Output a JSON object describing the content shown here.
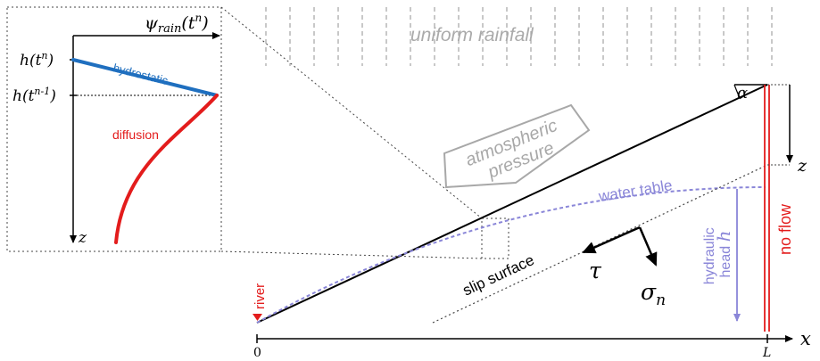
{
  "inset": {
    "psi_label_base": "ψ",
    "psi_label_sub": "rain",
    "psi_label_arg": "(t",
    "psi_label_sup": "n",
    "psi_label_close": ")",
    "h_tn_base": "h(t",
    "h_tn_sup": "n",
    "h_tn_close": ")",
    "h_tn1_base": "h(t",
    "h_tn1_sup": "n-1",
    "h_tn1_close": ")",
    "hydrostatic_label": "hydrostatic",
    "diffusion_label": "diffusion",
    "z_label": "z"
  },
  "main": {
    "rainfall_label": "uniform rainfall",
    "alpha_label": "α",
    "atmospheric_line1": "atmospheric",
    "atmospheric_line2": "pressure",
    "water_table_label": "water table",
    "slip_surface_label": "slip surface",
    "tau_label": "τ",
    "sigma_base": "σ",
    "sigma_sub": "n",
    "hydraulic_line1": "hydraulic",
    "hydraulic_line2": "head ",
    "hydraulic_h": "h",
    "no_flow_label": "no flow",
    "river_label": "river",
    "z_label": "z",
    "x_label": "x",
    "origin_label": "0",
    "L_label": "L"
  },
  "colors": {
    "hydrostatic": "#1f6fbf",
    "diffusion": "#e31c1c",
    "water_table": "#8a86d8",
    "rain_gray": "#aaaaaa",
    "pressure_gray": "#a8a8a8"
  }
}
